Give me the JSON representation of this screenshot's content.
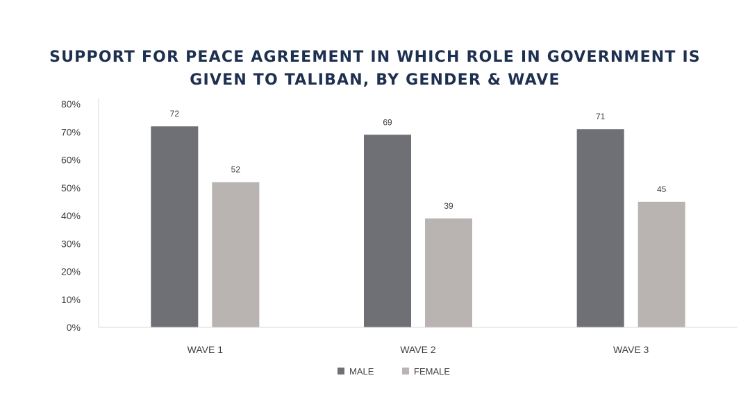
{
  "chart_data": {
    "type": "bar",
    "title": "SUPPORT FOR PEACE AGREEMENT IN WHICH ROLE IN GOVERNMENT IS GIVEN TO TALIBAN, BY GENDER & WAVE",
    "xlabel": "",
    "ylabel": "",
    "categories": [
      "WAVE 1",
      "WAVE 2",
      "WAVE 3"
    ],
    "series": [
      {
        "name": "MALE",
        "values": [
          72,
          69,
          71
        ],
        "color": "#6f7075"
      },
      {
        "name": "FEMALE",
        "values": [
          52,
          39,
          45
        ],
        "color": "#b9b4b1"
      }
    ],
    "ylim": [
      0,
      80
    ],
    "yticks": [
      0,
      10,
      20,
      30,
      40,
      50,
      60,
      70,
      80
    ],
    "ytick_labels": [
      "0%",
      "10%",
      "20%",
      "30%",
      "40%",
      "50%",
      "60%",
      "70%",
      "80%"
    ],
    "data_labels": true,
    "grid": false,
    "legend_position": "bottom"
  }
}
